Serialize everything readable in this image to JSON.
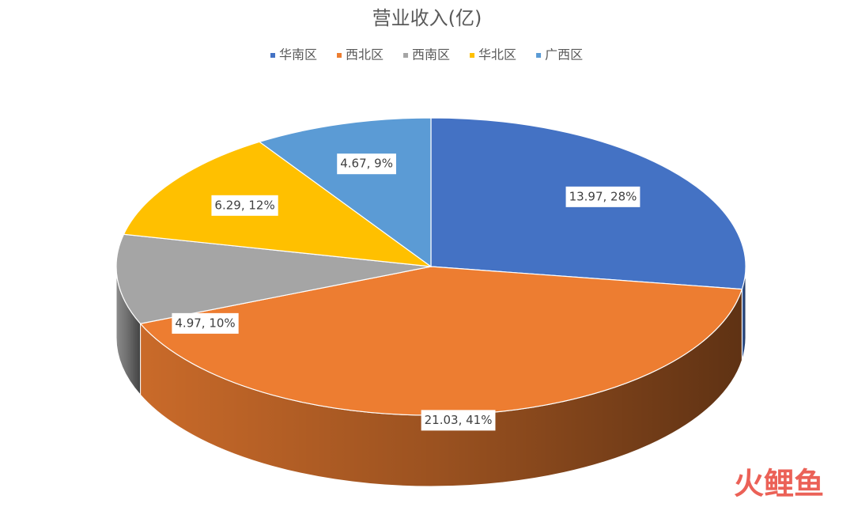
{
  "chart_data": {
    "type": "pie3d",
    "title": "营业收入(亿)",
    "categories": [
      "华南区",
      "西北区",
      "西南区",
      "华北区",
      "广西区"
    ],
    "values": [
      13.97,
      21.03,
      4.97,
      6.29,
      4.67
    ],
    "value_labels": [
      "13.97, 28%",
      "21.03, 41%",
      "4.97, 10%",
      "6.29, 12%",
      "4.67, 9%"
    ],
    "colors": [
      "#4472c4",
      "#ed7d31",
      "#a5a5a5",
      "#ffc000",
      "#5b9bd5"
    ],
    "legend": "top"
  },
  "watermark": "火鲤鱼"
}
